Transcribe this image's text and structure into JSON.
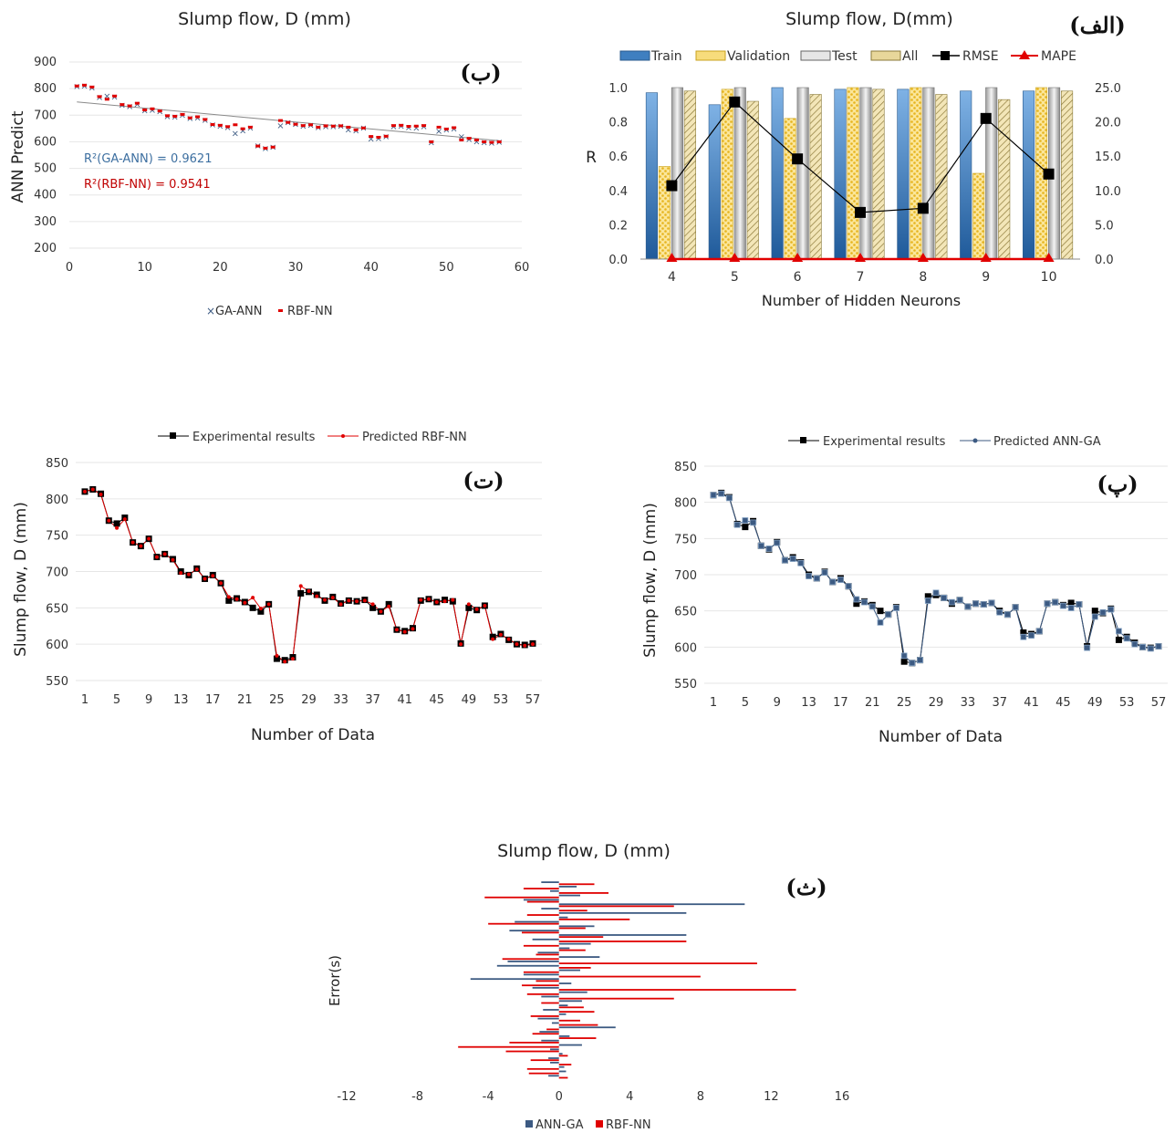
{
  "colors": {
    "train": "#3f7fc0",
    "validation": "#f2c32e",
    "test": "#c8c8c8",
    "all": "#cdb56a",
    "rmse": "#000000",
    "mape": "#e10000",
    "ga_ann": "#3c5a82",
    "rbf_nn": "#e00000",
    "trend": "#8a8a8a",
    "grid": "#e6e6e6"
  },
  "chart_data": [
    {
      "id": "alef",
      "type": "bar",
      "title": "Slump flow, D(mm)",
      "tag": "(الف)",
      "xlabel": "Number of Hidden Neurons",
      "ylabel": "R",
      "categories": [
        "4",
        "5",
        "6",
        "7",
        "8",
        "9",
        "10"
      ],
      "ylim": [
        0,
        1.0
      ],
      "y_ticks": [
        "0.0",
        "0.2",
        "0.4",
        "0.6",
        "0.8",
        "1.0"
      ],
      "y2lim": [
        0,
        25
      ],
      "y2_ticks": [
        "0.0",
        "5.0",
        "10.0",
        "15.0",
        "20.0",
        "25.0"
      ],
      "legend": [
        "Train",
        "Validation",
        "Test",
        "All",
        "RMSE",
        "MAPE"
      ],
      "series": [
        {
          "name": "Train",
          "values": [
            0.97,
            0.9,
            1.0,
            0.99,
            0.99,
            0.98,
            0.98
          ]
        },
        {
          "name": "Validation",
          "values": [
            0.54,
            0.99,
            0.82,
            1.0,
            1.0,
            0.5,
            1.0
          ]
        },
        {
          "name": "Test",
          "values": [
            1.0,
            1.0,
            1.0,
            1.0,
            1.0,
            1.0,
            1.0
          ]
        },
        {
          "name": "All",
          "values": [
            0.98,
            0.92,
            0.96,
            0.99,
            0.96,
            0.93,
            0.98
          ]
        }
      ],
      "lines": [
        {
          "name": "RMSE",
          "axis": "right",
          "values": [
            10.7,
            22.9,
            14.6,
            6.8,
            7.4,
            20.5,
            12.4
          ]
        },
        {
          "name": "MAPE",
          "axis": "right",
          "values": [
            0,
            0,
            0,
            0,
            0,
            0,
            0
          ]
        }
      ]
    },
    {
      "id": "be",
      "type": "scatter",
      "title": "Slump flow, D (mm)",
      "tag": "(ب)",
      "xlabel": "",
      "ylabel": "ANN Predict",
      "xlim": [
        0,
        60
      ],
      "ylim": [
        200,
        900
      ],
      "x_ticks": [
        "0",
        "10",
        "20",
        "30",
        "40",
        "50",
        "60"
      ],
      "y_ticks": [
        "200",
        "300",
        "400",
        "500",
        "600",
        "700",
        "800",
        "900"
      ],
      "annotations": [
        "R²(GA-ANN) = 0.9621",
        "R²(RBF-NN) = 0.9541"
      ],
      "legend": [
        "GA-ANN",
        "RBF-NN"
      ],
      "trend": {
        "x": [
          1,
          57
        ],
        "y": [
          750,
          604
        ]
      },
      "x": [
        1,
        2,
        3,
        4,
        5,
        6,
        7,
        8,
        9,
        10,
        11,
        12,
        13,
        14,
        15,
        16,
        17,
        18,
        19,
        20,
        21,
        22,
        23,
        24,
        25,
        26,
        27,
        28,
        29,
        30,
        31,
        32,
        33,
        34,
        35,
        36,
        37,
        38,
        39,
        40,
        41,
        42,
        43,
        44,
        45,
        46,
        47,
        48,
        49,
        50,
        51,
        52,
        53,
        54,
        55,
        56,
        57
      ],
      "series": [
        {
          "name": "GA-ANN",
          "values": [
            810,
            812,
            806,
            769,
            775,
            772,
            740,
            736,
            744,
            720,
            722,
            716,
            698,
            695,
            703,
            690,
            693,
            684,
            666,
            662,
            656,
            634,
            645,
            654,
            588,
            578,
            582,
            664,
            675,
            668,
            662,
            665,
            656,
            660,
            659,
            661,
            648,
            645,
            655,
            614,
            616,
            622,
            660,
            662,
            657,
            654,
            659,
            599,
            642,
            648,
            652,
            622,
            612,
            604,
            600,
            598,
            601
          ]
        },
        {
          "name": "RBF-NN",
          "values": [
            810,
            813,
            806,
            770,
            760,
            772,
            740,
            735,
            745,
            720,
            724,
            716,
            698,
            696,
            703,
            690,
            694,
            684,
            665,
            662,
            657,
            664,
            649,
            655,
            584,
            576,
            580,
            680,
            673,
            666,
            661,
            664,
            655,
            660,
            659,
            660,
            655,
            645,
            652,
            620,
            617,
            621,
            661,
            662,
            658,
            659,
            661,
            600,
            655,
            648,
            653,
            607,
            613,
            607,
            600,
            598,
            600
          ]
        }
      ]
    },
    {
      "id": "pe",
      "type": "line",
      "title": "",
      "tag": "(پ)",
      "xlabel": "Number of Data",
      "ylabel": "Slump flow, D (mm)",
      "ylim": [
        550,
        850
      ],
      "y_ticks": [
        "550",
        "600",
        "650",
        "700",
        "750",
        "800",
        "850"
      ],
      "x_ticks": [
        "1",
        "5",
        "9",
        "13",
        "17",
        "21",
        "25",
        "29",
        "33",
        "37",
        "41",
        "45",
        "49",
        "53",
        "57"
      ],
      "legend": [
        "Experimental results",
        "Predicted ANN-GA"
      ],
      "x": [
        1,
        2,
        3,
        4,
        5,
        6,
        7,
        8,
        9,
        10,
        11,
        12,
        13,
        14,
        15,
        16,
        17,
        18,
        19,
        20,
        21,
        22,
        23,
        24,
        25,
        26,
        27,
        28,
        29,
        30,
        31,
        32,
        33,
        34,
        35,
        36,
        37,
        38,
        39,
        40,
        41,
        42,
        43,
        44,
        45,
        46,
        47,
        48,
        49,
        50,
        51,
        52,
        53,
        54,
        55,
        56,
        57
      ],
      "series": [
        {
          "name": "Experimental results",
          "values": [
            810,
            813,
            807,
            770,
            766,
            774,
            740,
            735,
            745,
            720,
            724,
            717,
            700,
            695,
            704,
            690,
            695,
            684,
            660,
            663,
            658,
            650,
            645,
            655,
            580,
            578,
            582,
            670,
            672,
            668,
            660,
            665,
            656,
            660,
            659,
            661,
            650,
            645,
            655,
            620,
            618,
            622,
            660,
            662,
            658,
            661,
            659,
            601,
            650,
            647,
            653,
            610,
            614,
            606,
            600,
            599,
            601
          ]
        },
        {
          "name": "Predicted ANN-GA",
          "values": [
            810,
            812,
            806,
            769,
            775,
            772,
            740,
            736,
            744,
            720,
            722,
            716,
            698,
            695,
            703,
            690,
            693,
            684,
            666,
            662,
            656,
            634,
            645,
            654,
            588,
            578,
            582,
            664,
            675,
            668,
            662,
            665,
            656,
            660,
            659,
            661,
            648,
            645,
            655,
            614,
            616,
            622,
            660,
            662,
            657,
            654,
            659,
            599,
            642,
            648,
            652,
            622,
            612,
            604,
            600,
            598,
            601
          ]
        }
      ]
    },
    {
      "id": "te",
      "type": "line",
      "title": "",
      "tag": "(ت)",
      "xlabel": "Number of Data",
      "ylabel": "Slump flow, D (mm)",
      "ylim": [
        550,
        850
      ],
      "y_ticks": [
        "550",
        "600",
        "650",
        "700",
        "750",
        "800",
        "850"
      ],
      "x_ticks": [
        "1",
        "5",
        "9",
        "13",
        "17",
        "21",
        "25",
        "29",
        "33",
        "37",
        "41",
        "45",
        "49",
        "53",
        "57"
      ],
      "legend": [
        "Experimental results",
        "Predicted RBF-NN"
      ],
      "x": [
        1,
        2,
        3,
        4,
        5,
        6,
        7,
        8,
        9,
        10,
        11,
        12,
        13,
        14,
        15,
        16,
        17,
        18,
        19,
        20,
        21,
        22,
        23,
        24,
        25,
        26,
        27,
        28,
        29,
        30,
        31,
        32,
        33,
        34,
        35,
        36,
        37,
        38,
        39,
        40,
        41,
        42,
        43,
        44,
        45,
        46,
        47,
        48,
        49,
        50,
        51,
        52,
        53,
        54,
        55,
        56,
        57
      ],
      "series": [
        {
          "name": "Experimental results",
          "values": [
            810,
            813,
            807,
            770,
            766,
            774,
            740,
            735,
            745,
            720,
            724,
            717,
            700,
            695,
            704,
            690,
            695,
            684,
            660,
            663,
            658,
            650,
            645,
            655,
            580,
            578,
            582,
            670,
            672,
            668,
            660,
            665,
            656,
            660,
            659,
            661,
            650,
            645,
            655,
            620,
            618,
            622,
            660,
            662,
            658,
            661,
            659,
            601,
            650,
            647,
            653,
            610,
            614,
            606,
            600,
            599,
            601
          ]
        },
        {
          "name": "Predicted RBF-NN",
          "values": [
            810,
            813,
            806,
            770,
            760,
            772,
            740,
            735,
            745,
            720,
            724,
            716,
            698,
            696,
            703,
            690,
            694,
            684,
            665,
            662,
            657,
            664,
            649,
            655,
            584,
            576,
            580,
            680,
            673,
            666,
            661,
            664,
            655,
            660,
            659,
            660,
            655,
            645,
            652,
            620,
            617,
            621,
            661,
            662,
            658,
            659,
            661,
            600,
            655,
            648,
            653,
            607,
            613,
            607,
            600,
            598,
            600
          ]
        }
      ]
    },
    {
      "id": "se",
      "type": "bar",
      "orientation": "horizontal",
      "title": "Slump flow, D (mm)",
      "tag": "(ث)",
      "xlabel": "",
      "ylabel": "Error(s)",
      "xlim": [
        -12,
        16
      ],
      "x_ticks": [
        "-12",
        "-8",
        "-4",
        "0",
        "4",
        "8",
        "12",
        "16"
      ],
      "legend": [
        "ANN-GA",
        "RBF-NN"
      ],
      "series": [
        {
          "name": "ANN-GA",
          "values": [
            -1.0,
            1.0,
            -0.5,
            1.2,
            -2.0,
            10.5,
            -1.0,
            7.2,
            0.5,
            -2.5,
            2.0,
            -2.8,
            7.2,
            -1.5,
            1.8,
            0.6,
            -1.2,
            2.3,
            -2.9,
            -3.5,
            1.2,
            -2.0,
            -5.0,
            0.7,
            -1.5,
            1.6,
            -1.0,
            1.3,
            0.5,
            -0.9,
            0.4,
            -1.2,
            -0.4,
            3.2,
            -1.1,
            0.6,
            -1.0,
            1.3,
            -0.5,
            0.2,
            -0.6,
            -0.5,
            0.3,
            0.4,
            -0.6
          ]
        },
        {
          "name": "RBF-NN",
          "values": [
            2.0,
            -2.0,
            2.8,
            -4.2,
            -1.8,
            6.5,
            1.6,
            -1.8,
            4.0,
            -4.0,
            1.5,
            -2.1,
            2.5,
            7.2,
            -2.0,
            1.5,
            -1.3,
            -3.2,
            11.2,
            1.8,
            -2.0,
            8.0,
            -1.3,
            -2.1,
            13.4,
            -1.8,
            6.5,
            -1.0,
            1.4,
            2.0,
            -1.6,
            1.2,
            2.2,
            -0.7,
            -1.5,
            2.1,
            -2.8,
            -5.7,
            -3.0,
            0.5,
            -1.6,
            0.7,
            -1.8,
            -1.7,
            0.5
          ]
        }
      ]
    }
  ]
}
